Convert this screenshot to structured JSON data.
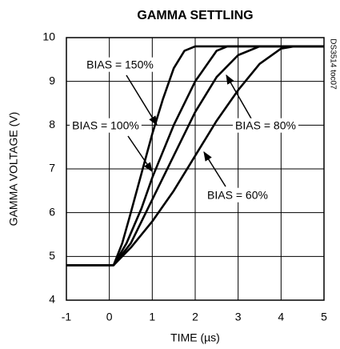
{
  "chart_data": {
    "type": "line",
    "title": "GAMMA SETTLING",
    "xlabel": "TIME (µs)",
    "ylabel": "GAMMA VOLTAGE (V)",
    "note": "DS3514 toc07",
    "xlim": [
      -1,
      5
    ],
    "xticks": [
      -1,
      0,
      1,
      2,
      3,
      4,
      5
    ],
    "ylim": [
      4,
      10
    ],
    "yticks": [
      4,
      5,
      6,
      7,
      8,
      9,
      10
    ],
    "grid": true,
    "series": [
      {
        "name": "BIAS = 150%",
        "color": "#000000",
        "x": [
          -1,
          0.1,
          0.3,
          0.5,
          0.75,
          1.0,
          1.25,
          1.5,
          1.75,
          2.0,
          5
        ],
        "values": [
          4.8,
          4.8,
          5.3,
          6.0,
          6.9,
          7.8,
          8.6,
          9.3,
          9.7,
          9.8,
          9.8
        ]
      },
      {
        "name": "BIAS = 100%",
        "color": "#000000",
        "x": [
          -1,
          0.1,
          0.4,
          0.75,
          1.0,
          1.5,
          2.0,
          2.5,
          2.75,
          5
        ],
        "values": [
          4.8,
          4.8,
          5.3,
          6.1,
          6.8,
          8.0,
          9.0,
          9.7,
          9.8,
          9.8
        ]
      },
      {
        "name": "BIAS = 80%",
        "color": "#000000",
        "x": [
          -1,
          0.1,
          0.5,
          1.0,
          1.5,
          2.0,
          2.5,
          3.0,
          3.5,
          5
        ],
        "values": [
          4.8,
          4.8,
          5.3,
          6.3,
          7.3,
          8.3,
          9.1,
          9.6,
          9.8,
          9.8
        ]
      },
      {
        "name": "BIAS = 60%",
        "color": "#000000",
        "x": [
          -1,
          0.1,
          0.5,
          1.0,
          1.5,
          2.0,
          2.5,
          3.0,
          3.5,
          4.0,
          4.3,
          5
        ],
        "values": [
          4.8,
          4.8,
          5.2,
          5.8,
          6.5,
          7.3,
          8.1,
          8.8,
          9.4,
          9.75,
          9.8,
          9.8
        ]
      }
    ]
  }
}
